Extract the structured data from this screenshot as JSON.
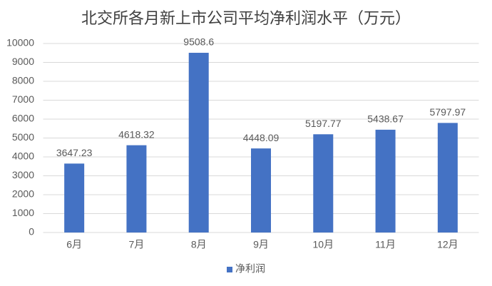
{
  "chart_data": {
    "type": "bar",
    "title": "北交所各月新上市公司平均净利润水平（万元）",
    "categories": [
      "6月",
      "7月",
      "8月",
      "9月",
      "10月",
      "11月",
      "12月"
    ],
    "series": [
      {
        "name": "净利润",
        "color": "#4472c4",
        "values": [
          3647.23,
          4618.32,
          9508.6,
          4448.09,
          5197.77,
          5438.67,
          5797.97
        ]
      }
    ],
    "ylim": [
      0,
      10000
    ],
    "yticks": [
      0,
      1000,
      2000,
      3000,
      4000,
      5000,
      6000,
      7000,
      8000,
      9000,
      10000
    ],
    "grid": true,
    "legend": "bottom"
  }
}
